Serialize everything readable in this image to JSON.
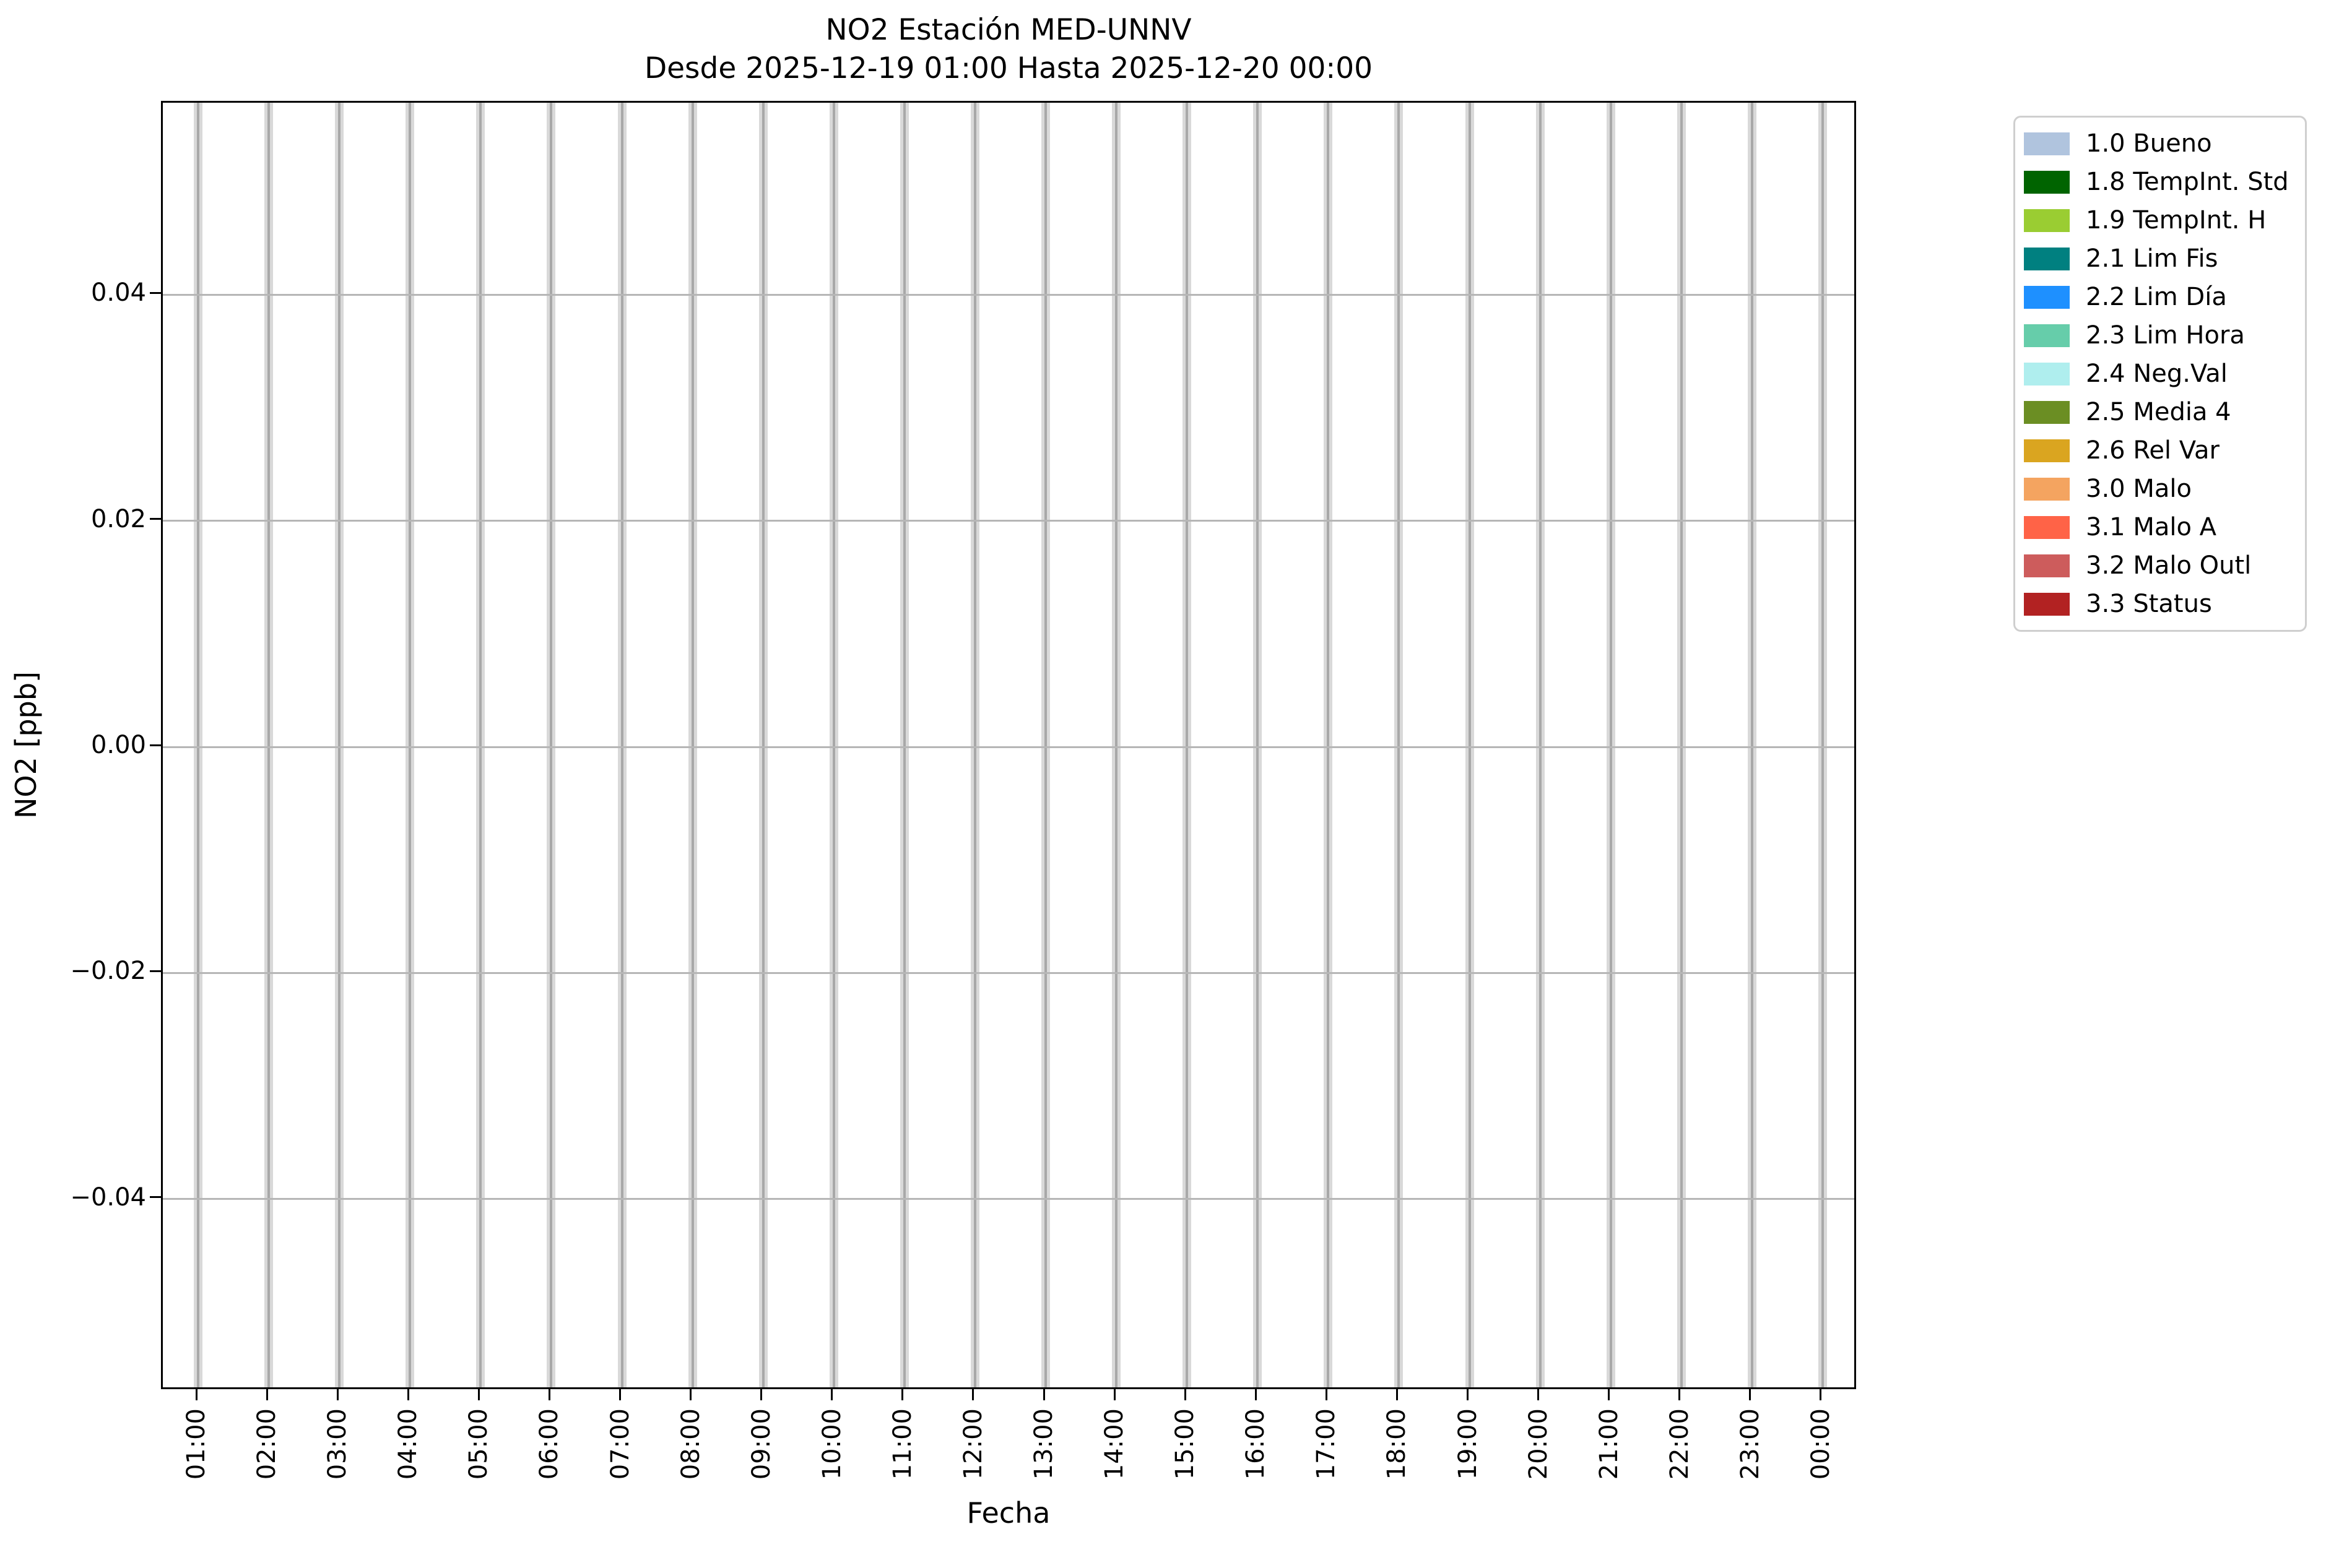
{
  "title": {
    "line1": "NO2 Estación MED-UNNV",
    "line2": "Desde 2025-12-19 01:00 Hasta 2025-12-20 00:00"
  },
  "axes": {
    "xlabel": "Fecha",
    "ylabel": "NO2 [ppb]",
    "x_tick_labels": [
      "01:00",
      "02:00",
      "03:00",
      "04:00",
      "05:00",
      "06:00",
      "07:00",
      "08:00",
      "09:00",
      "10:00",
      "11:00",
      "12:00",
      "13:00",
      "14:00",
      "15:00",
      "16:00",
      "17:00",
      "18:00",
      "19:00",
      "20:00",
      "21:00",
      "22:00",
      "23:00",
      "00:00"
    ],
    "y_ticks": [
      {
        "value": 0.04,
        "label": "0.04"
      },
      {
        "value": 0.02,
        "label": "0.02"
      },
      {
        "value": 0.0,
        "label": "0.00"
      },
      {
        "value": -0.02,
        "label": "−0.02"
      },
      {
        "value": -0.04,
        "label": "−0.04"
      }
    ],
    "spine_color": "#000000",
    "grid_color": "#b6b6b6",
    "hour_band_color": "#d9d9d9",
    "hour_band_line_color": "#a8a8a8"
  },
  "legend": {
    "border_color": "#cfcfcf",
    "entries": [
      {
        "label": "1.0 Bueno",
        "color": "#b0c4de"
      },
      {
        "label": "1.8 TempInt. Std",
        "color": "#006400"
      },
      {
        "label": "1.9 TempInt. H",
        "color": "#9acd32"
      },
      {
        "label": "2.1 Lim Fis",
        "color": "#008080"
      },
      {
        "label": "2.2 Lim Día",
        "color": "#1e90ff"
      },
      {
        "label": "2.3 Lim Hora",
        "color": "#66cdaa"
      },
      {
        "label": "2.4 Neg.Val",
        "color": "#afeeee"
      },
      {
        "label": "2.5 Media 4",
        "color": "#6b8e23"
      },
      {
        "label": "2.6 Rel Var",
        "color": "#daa520"
      },
      {
        "label": "3.0 Malo",
        "color": "#f4a460"
      },
      {
        "label": "3.1 Malo A",
        "color": "#ff6347"
      },
      {
        "label": "3.2 Malo Outl",
        "color": "#cd5c5c"
      },
      {
        "label": "3.3 Status",
        "color": "#b22222"
      }
    ]
  },
  "chart_data": {
    "type": "bar",
    "title": "NO2 Estación MED-UNNV",
    "subtitle": "Desde 2025-12-19 01:00 Hasta 2025-12-20 00:00",
    "xlabel": "Fecha",
    "ylabel": "NO2 [ppb]",
    "categories": [
      "01:00",
      "02:00",
      "03:00",
      "04:00",
      "05:00",
      "06:00",
      "07:00",
      "08:00",
      "09:00",
      "10:00",
      "11:00",
      "12:00",
      "13:00",
      "14:00",
      "15:00",
      "16:00",
      "17:00",
      "18:00",
      "19:00",
      "20:00",
      "21:00",
      "22:00",
      "23:00",
      "00:00"
    ],
    "values": [
      0,
      0,
      0,
      0,
      0,
      0,
      0,
      0,
      0,
      0,
      0,
      0,
      0,
      0,
      0,
      0,
      0,
      0,
      0,
      0,
      0,
      0,
      0,
      0
    ],
    "ylim": [
      -0.057,
      0.057
    ],
    "y_tick_values": [
      -0.04,
      -0.02,
      0.0,
      0.02,
      0.04
    ],
    "grid": true,
    "legend_position": "outside upper right",
    "legend_entries": [
      "1.0 Bueno",
      "1.8 TempInt. Std",
      "1.9 TempInt. H",
      "2.1 Lim Fis",
      "2.2 Lim Día",
      "2.3 Lim Hora",
      "2.4 Neg.Val",
      "2.5 Media 4",
      "2.6 Rel Var",
      "3.0 Malo",
      "3.1 Malo A",
      "3.2 Malo Outl",
      "3.3 Status"
    ],
    "annotations": "No nonzero NO2 values are plotted; a light gray vertical band with a gray gridline marks each hourly position across the full plot height."
  }
}
